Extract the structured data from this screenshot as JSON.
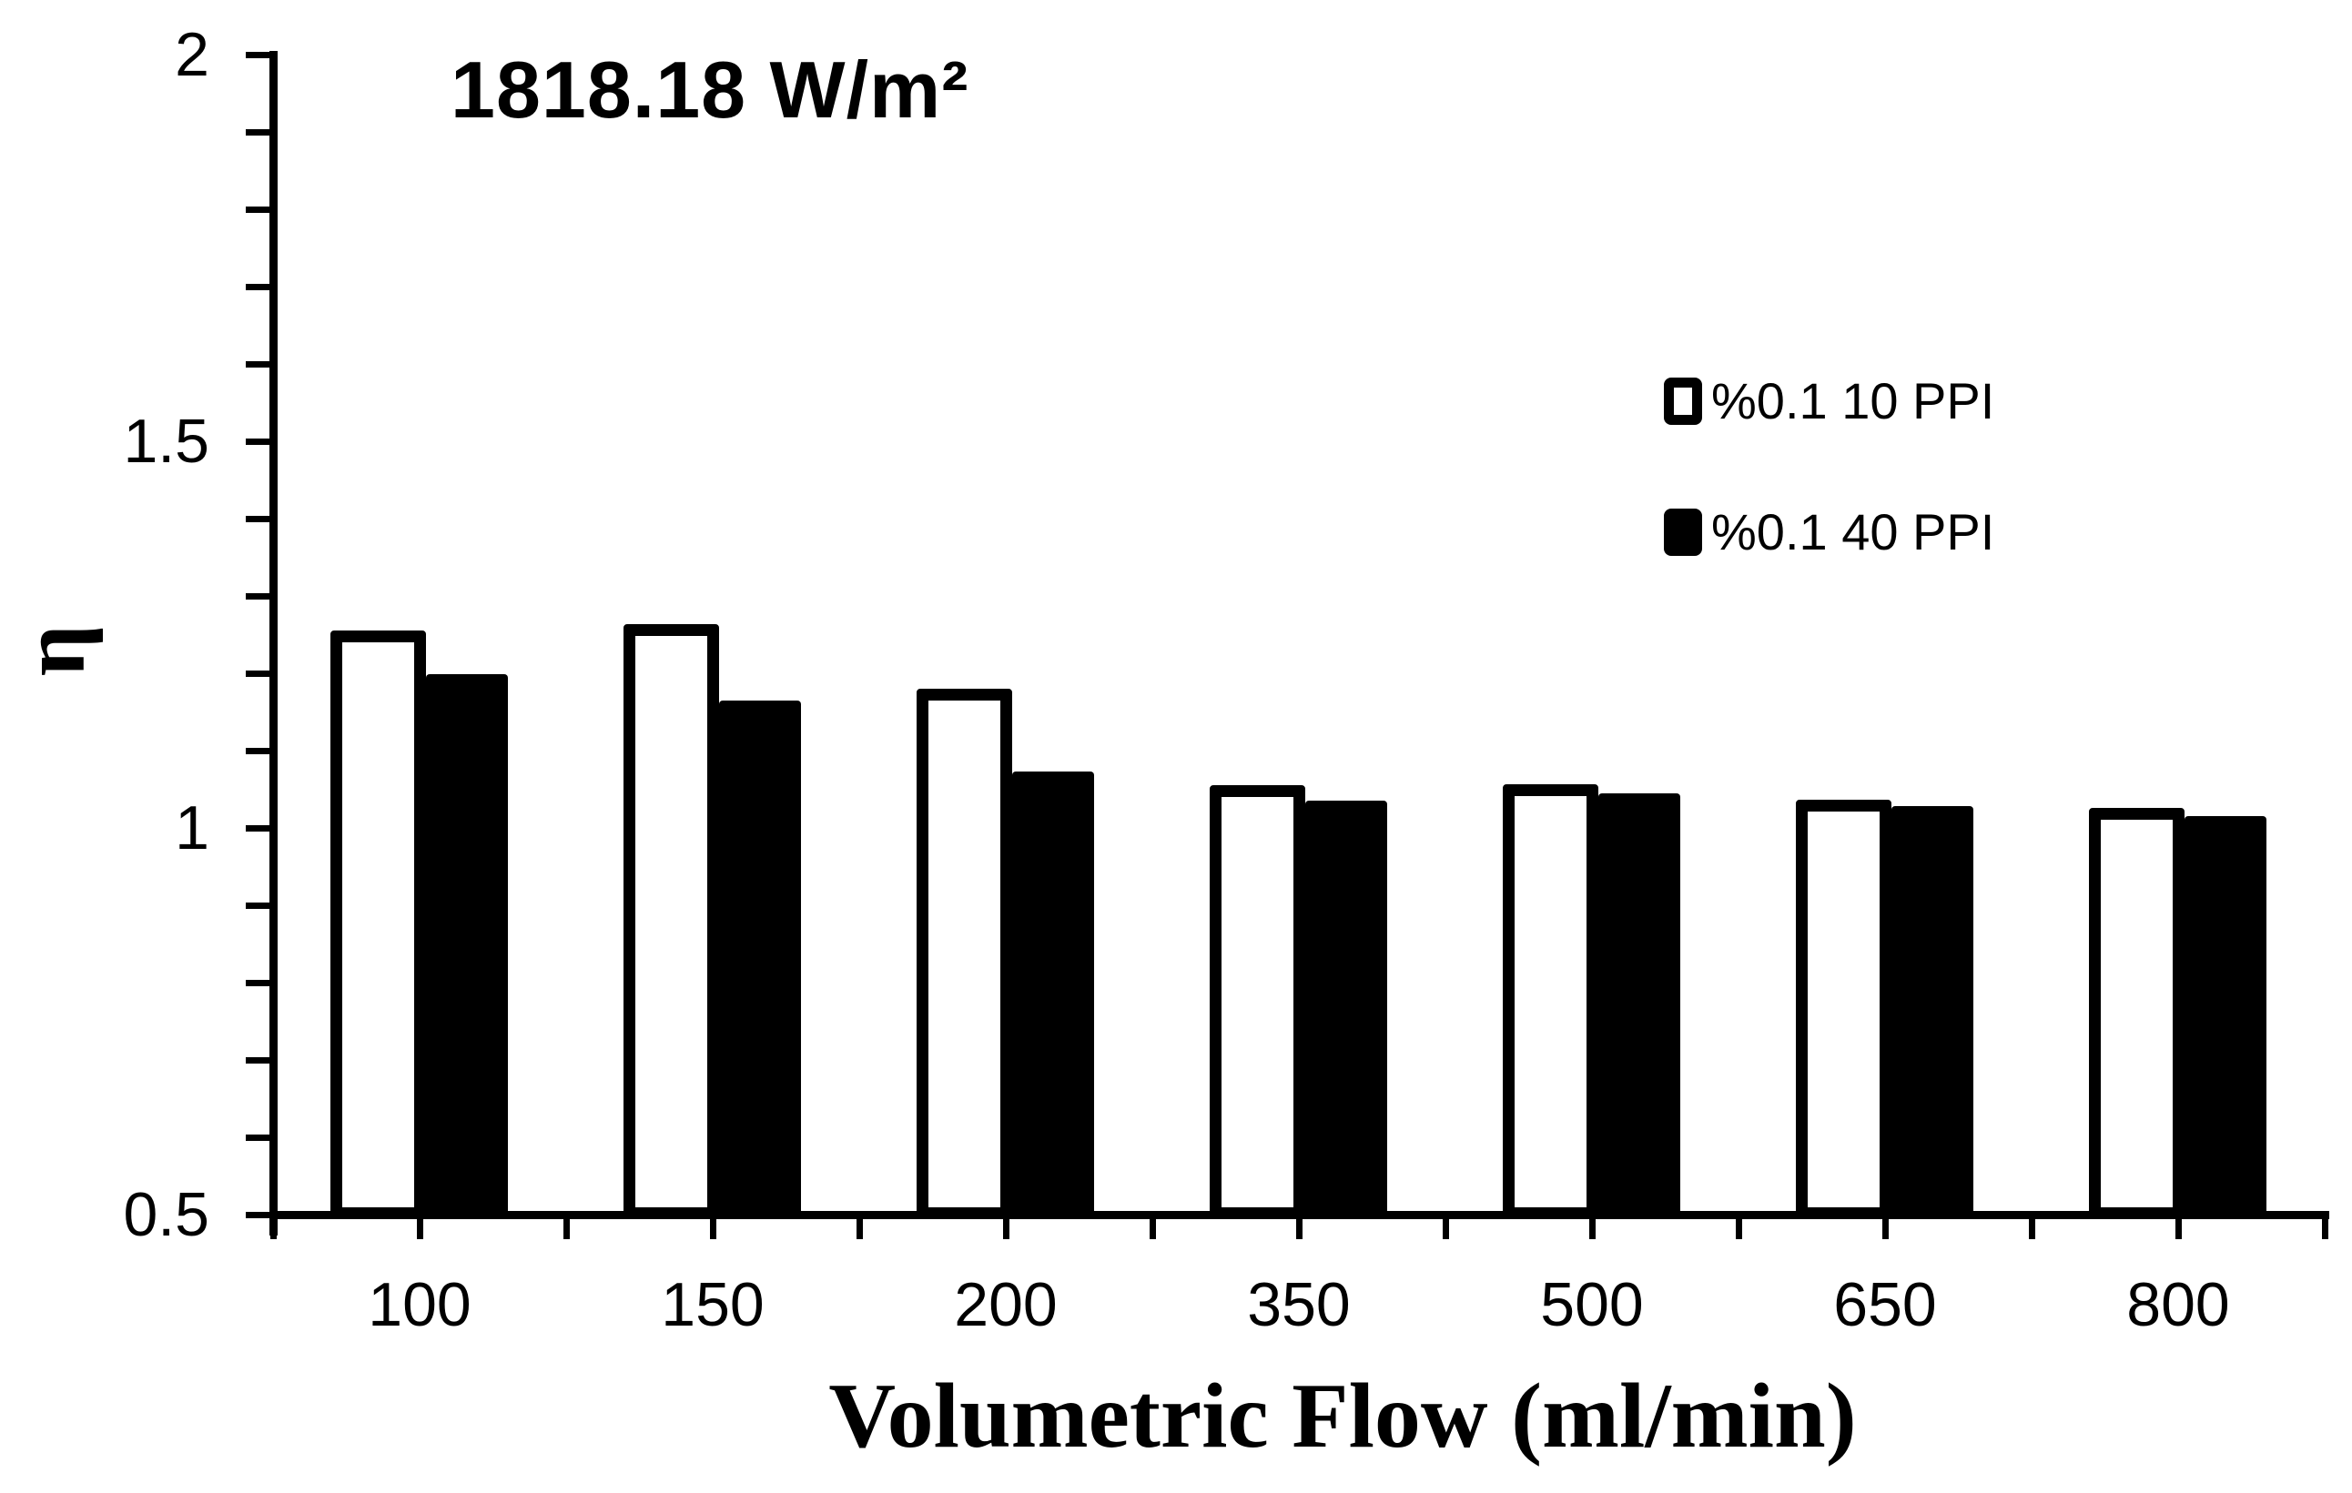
{
  "figure": {
    "background": "#ffffff",
    "foreground": "#000000"
  },
  "chart_data": {
    "type": "bar",
    "annotation": "1818.18 W/m²",
    "xlabel": "Volumetric Flow (ml/min)",
    "ylabel": "η",
    "categories": [
      "100",
      "150",
      "200",
      "350",
      "500",
      "650",
      "800"
    ],
    "series": [
      {
        "name": "%0.1 10 PPI",
        "style": "open",
        "fill": "#ffffff",
        "border": "#000000",
        "values": [
          1.255,
          1.264,
          1.18,
          1.055,
          1.056,
          1.037,
          1.026
        ]
      },
      {
        "name": "%0.1 40 PPI",
        "style": "filled",
        "fill": "#000000",
        "border": "#000000",
        "values": [
          1.199,
          1.165,
          1.073,
          1.035,
          1.045,
          1.028,
          1.015
        ]
      }
    ],
    "y_axis": {
      "min": 0.5,
      "max": 2,
      "minor_tick": 0.1,
      "tick_labels": [
        "0.5",
        "1",
        "1.5",
        "2"
      ]
    },
    "x_axis": {
      "ticks_per_category": 2
    },
    "legend": {
      "position": "inside-top-right"
    },
    "grid": false
  }
}
